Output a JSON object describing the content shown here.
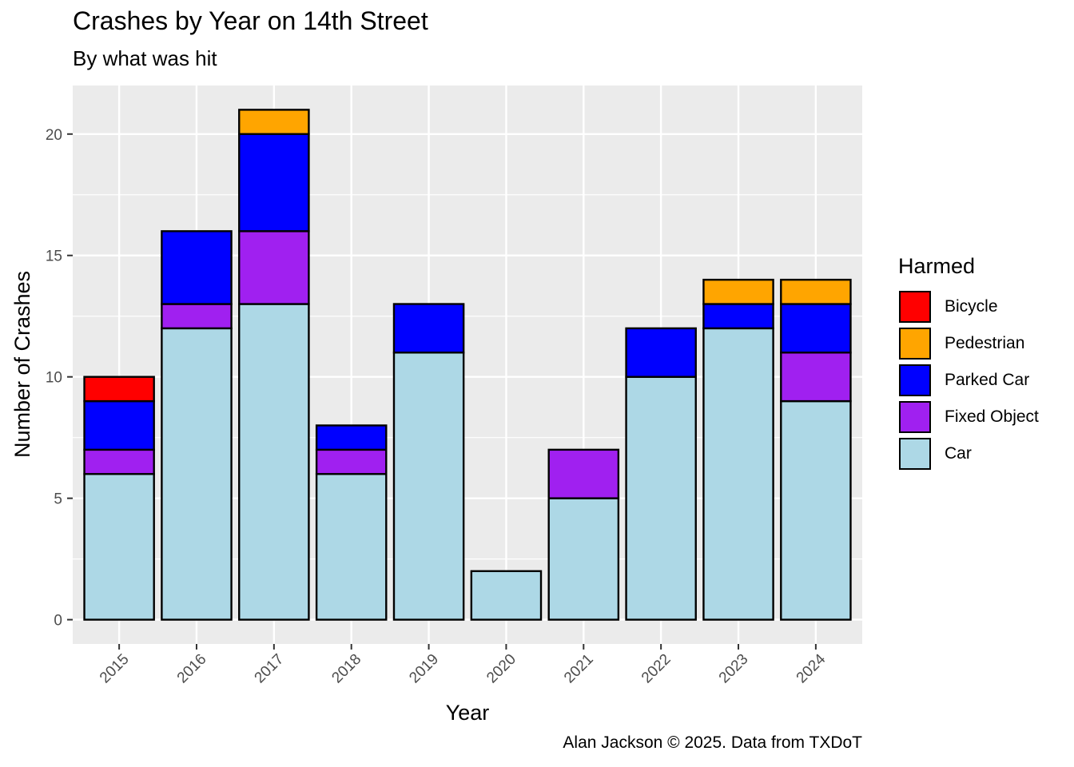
{
  "chart_data": {
    "type": "bar",
    "stacked": true,
    "title": "Crashes by Year on 14th Street",
    "subtitle": "By what was hit",
    "xlabel": "Year",
    "ylabel": "Number of Crashes",
    "caption": "Alan Jackson © 2025. Data from TXDoT",
    "legend_title": "Harmed",
    "legend_position": "right",
    "categories": [
      "2015",
      "2016",
      "2017",
      "2018",
      "2019",
      "2020",
      "2021",
      "2022",
      "2023",
      "2024"
    ],
    "yticks": [
      "0",
      "5",
      "10",
      "15",
      "20"
    ],
    "ylim": [
      -1,
      22
    ],
    "grid": true,
    "stack_order": [
      "Car",
      "Fixed Object",
      "Parked Car",
      "Pedestrian",
      "Bicycle"
    ],
    "series": [
      {
        "name": "Bicycle",
        "color": "#ff0000",
        "values": [
          1,
          0,
          0,
          0,
          0,
          0,
          0,
          0,
          0,
          0
        ]
      },
      {
        "name": "Pedestrian",
        "color": "#ffa500",
        "values": [
          0,
          0,
          1,
          0,
          0,
          0,
          0,
          0,
          1,
          1
        ]
      },
      {
        "name": "Parked Car",
        "color": "#0000ff",
        "values": [
          2,
          3,
          4,
          1,
          2,
          0,
          0,
          2,
          1,
          2
        ]
      },
      {
        "name": "Fixed Object",
        "color": "#a020f0",
        "values": [
          1,
          1,
          3,
          1,
          0,
          0,
          2,
          0,
          0,
          2
        ]
      },
      {
        "name": "Car",
        "color": "#add8e6",
        "values": [
          6,
          12,
          13,
          6,
          11,
          2,
          5,
          10,
          12,
          9
        ]
      }
    ]
  }
}
